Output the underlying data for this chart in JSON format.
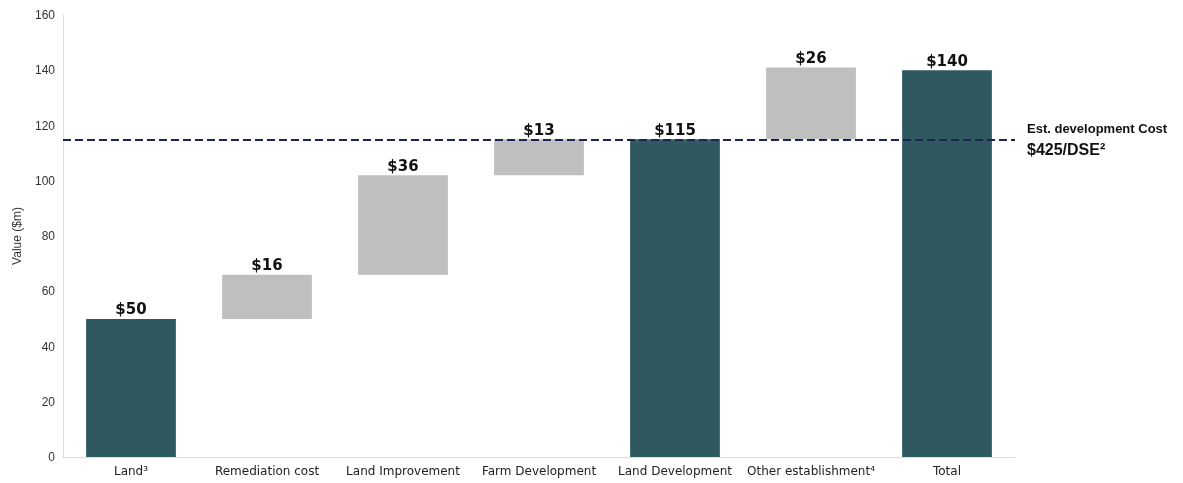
{
  "chart_data": {
    "type": "bar",
    "ylabel": "Value ($m)",
    "categories": [
      "Land³",
      "Remediation cost",
      "Land Improvement",
      "Farm Development",
      "Land Development",
      "Other establishment⁴",
      "Total"
    ],
    "values": [
      50,
      16,
      36,
      13,
      115,
      26,
      140
    ],
    "base": [
      0,
      50,
      66,
      102,
      0,
      115,
      0
    ],
    "colors": [
      "#2e5961",
      "#bfbfbf",
      "#bfbfbf",
      "#bfbfbf",
      "#2e5961",
      "#bfbfbf",
      "#2e5961"
    ],
    "value_labels": [
      "$50",
      "$16",
      "$36",
      "$13",
      "$115",
      "$26",
      "$140"
    ],
    "ylim": [
      0,
      160
    ],
    "yticks": [
      0,
      20,
      40,
      60,
      80,
      100,
      120,
      140,
      160
    ],
    "ref_lines": [
      {
        "axis": "y",
        "value": 115,
        "label": "Est. development Cost",
        "color": "#1f2352",
        "line_style": "dashed"
      }
    ],
    "annotations": [
      "$425/DSE²"
    ],
    "grid": false
  }
}
